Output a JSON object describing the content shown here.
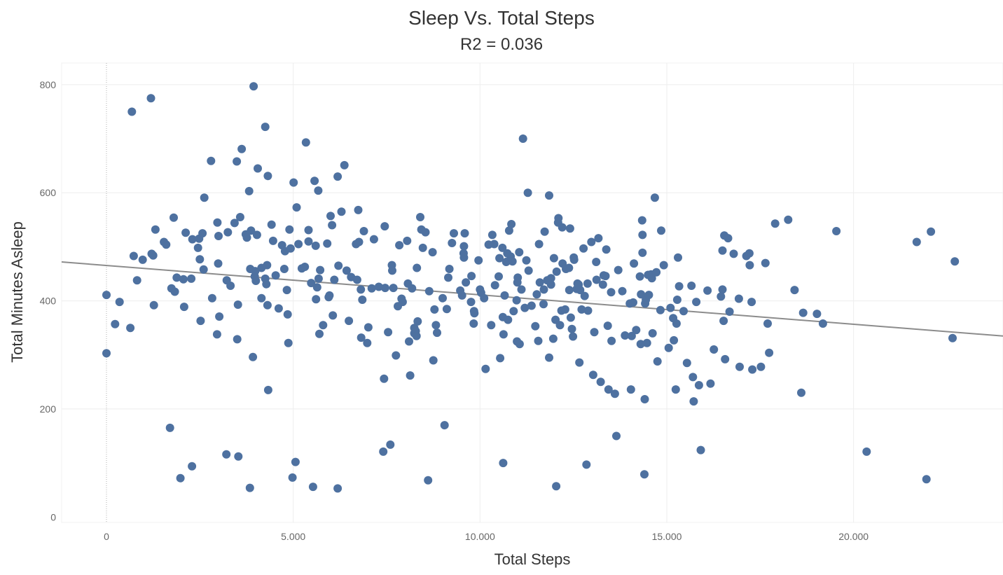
{
  "chart_data": {
    "type": "scatter",
    "title": "Sleep Vs. Total Steps",
    "subtitle": "R2 = 0.036",
    "xlabel": "Total Steps",
    "ylabel": "Total Minutes Asleep",
    "xlim": [
      -1200,
      24000
    ],
    "ylim": [
      -10,
      840
    ],
    "x_ticks": [
      0,
      5000,
      10000,
      15000,
      20000
    ],
    "x_tick_labels": [
      "0",
      "5.000",
      "10.000",
      "15.000",
      "20.000"
    ],
    "y_ticks": [
      0,
      200,
      400,
      600,
      800
    ],
    "y_tick_labels": [
      "0",
      "200",
      "400",
      "600",
      "800"
    ],
    "grid": true,
    "point_color": "#4e71a0",
    "trend_color": "#8c8c8c",
    "trend_line": {
      "x": [
        -1200,
        24000
      ],
      "y": [
        472,
        335
      ]
    },
    "points": [
      [
        0,
        303
      ],
      [
        0,
        411
      ],
      [
        230,
        357
      ],
      [
        350,
        398
      ],
      [
        640,
        350
      ],
      [
        680,
        750
      ],
      [
        730,
        483
      ],
      [
        820,
        438
      ],
      [
        970,
        476
      ],
      [
        1190,
        775
      ],
      [
        1210,
        487
      ],
      [
        1250,
        484
      ],
      [
        1270,
        392
      ],
      [
        1310,
        532
      ],
      [
        1540,
        509
      ],
      [
        1600,
        504
      ],
      [
        1700,
        165
      ],
      [
        1740,
        423
      ],
      [
        1800,
        554
      ],
      [
        1830,
        417
      ],
      [
        1880,
        443
      ],
      [
        1980,
        72
      ],
      [
        2060,
        440
      ],
      [
        2080,
        389
      ],
      [
        2120,
        526
      ],
      [
        2270,
        441
      ],
      [
        2290,
        94
      ],
      [
        2300,
        514
      ],
      [
        2450,
        498
      ],
      [
        2480,
        515
      ],
      [
        2500,
        477
      ],
      [
        2520,
        363
      ],
      [
        2570,
        525
      ],
      [
        2600,
        458
      ],
      [
        2620,
        591
      ],
      [
        2800,
        659
      ],
      [
        2830,
        405
      ],
      [
        2960,
        338
      ],
      [
        2970,
        545
      ],
      [
        2990,
        469
      ],
      [
        3000,
        520
      ],
      [
        3020,
        371
      ],
      [
        3210,
        116
      ],
      [
        3220,
        438
      ],
      [
        3250,
        527
      ],
      [
        3320,
        428
      ],
      [
        3430,
        544
      ],
      [
        3490,
        658
      ],
      [
        3500,
        329
      ],
      [
        3520,
        393
      ],
      [
        3530,
        112
      ],
      [
        3580,
        555
      ],
      [
        3620,
        681
      ],
      [
        3730,
        523
      ],
      [
        3760,
        517
      ],
      [
        3820,
        603
      ],
      [
        3840,
        54
      ],
      [
        3850,
        459
      ],
      [
        3870,
        530
      ],
      [
        3920,
        296
      ],
      [
        3940,
        797
      ],
      [
        3970,
        445
      ],
      [
        3980,
        455
      ],
      [
        4000,
        437
      ],
      [
        4030,
        522
      ],
      [
        4050,
        645
      ],
      [
        4150,
        405
      ],
      [
        4150,
        461
      ],
      [
        4250,
        722
      ],
      [
        4250,
        441
      ],
      [
        4280,
        431
      ],
      [
        4300,
        466
      ],
      [
        4310,
        392
      ],
      [
        4320,
        631
      ],
      [
        4330,
        235
      ],
      [
        4420,
        541
      ],
      [
        4460,
        511
      ],
      [
        4530,
        447
      ],
      [
        4610,
        386
      ],
      [
        4700,
        503
      ],
      [
        4760,
        459
      ],
      [
        4780,
        492
      ],
      [
        4830,
        420
      ],
      [
        4850,
        375
      ],
      [
        4870,
        322
      ],
      [
        4900,
        532
      ],
      [
        4930,
        497
      ],
      [
        4980,
        73
      ],
      [
        5010,
        619
      ],
      [
        5060,
        102
      ],
      [
        5090,
        573
      ],
      [
        5140,
        505
      ],
      [
        5230,
        460
      ],
      [
        5310,
        463
      ],
      [
        5340,
        693
      ],
      [
        5410,
        531
      ],
      [
        5410,
        510
      ],
      [
        5480,
        433
      ],
      [
        5530,
        56
      ],
      [
        5570,
        622
      ],
      [
        5600,
        502
      ],
      [
        5610,
        403
      ],
      [
        5640,
        425
      ],
      [
        5670,
        604
      ],
      [
        5680,
        441
      ],
      [
        5700,
        339
      ],
      [
        5720,
        457
      ],
      [
        5800,
        355
      ],
      [
        5910,
        506
      ],
      [
        5950,
        407
      ],
      [
        5970,
        410
      ],
      [
        6000,
        557
      ],
      [
        6040,
        540
      ],
      [
        6060,
        373
      ],
      [
        6100,
        439
      ],
      [
        6190,
        53
      ],
      [
        6190,
        630
      ],
      [
        6210,
        465
      ],
      [
        6290,
        565
      ],
      [
        6370,
        651
      ],
      [
        6430,
        456
      ],
      [
        6490,
        363
      ],
      [
        6550,
        444
      ],
      [
        6680,
        505
      ],
      [
        6710,
        439
      ],
      [
        6740,
        568
      ],
      [
        6760,
        509
      ],
      [
        6810,
        421
      ],
      [
        6820,
        332
      ],
      [
        6850,
        402
      ],
      [
        6890,
        529
      ],
      [
        6980,
        322
      ],
      [
        7010,
        351
      ],
      [
        7100,
        423
      ],
      [
        7160,
        514
      ],
      [
        7290,
        426
      ],
      [
        7410,
        121
      ],
      [
        7430,
        256
      ],
      [
        7450,
        538
      ],
      [
        7460,
        424
      ],
      [
        7540,
        342
      ],
      [
        7600,
        134
      ],
      [
        7640,
        466
      ],
      [
        7650,
        456
      ],
      [
        7680,
        424
      ],
      [
        7750,
        299
      ],
      [
        7800,
        390
      ],
      [
        7840,
        503
      ],
      [
        7900,
        404
      ],
      [
        7930,
        398
      ],
      [
        8050,
        511
      ],
      [
        8070,
        432
      ],
      [
        8100,
        325
      ],
      [
        8130,
        262
      ],
      [
        8180,
        423
      ],
      [
        8240,
        350
      ],
      [
        8240,
        340
      ],
      [
        8280,
        344
      ],
      [
        8300,
        335
      ],
      [
        8310,
        461
      ],
      [
        8330,
        362
      ],
      [
        8400,
        555
      ],
      [
        8430,
        532
      ],
      [
        8470,
        498
      ],
      [
        8540,
        527
      ],
      [
        8610,
        68
      ],
      [
        8640,
        418
      ],
      [
        8730,
        490
      ],
      [
        8750,
        290
      ],
      [
        8780,
        384
      ],
      [
        8820,
        355
      ],
      [
        8850,
        341
      ],
      [
        9000,
        405
      ],
      [
        9050,
        170
      ],
      [
        9110,
        385
      ],
      [
        9150,
        443
      ],
      [
        9180,
        459
      ],
      [
        9250,
        507
      ],
      [
        9300,
        525
      ],
      [
        9470,
        419
      ],
      [
        9520,
        410
      ],
      [
        9560,
        488
      ],
      [
        9570,
        480
      ],
      [
        9570,
        501
      ],
      [
        9590,
        525
      ],
      [
        9620,
        434
      ],
      [
        9770,
        446
      ],
      [
        9760,
        398
      ],
      [
        9830,
        358
      ],
      [
        9840,
        381
      ],
      [
        9850,
        377
      ],
      [
        9960,
        475
      ],
      [
        10000,
        421
      ],
      [
        10030,
        415
      ],
      [
        10110,
        405
      ],
      [
        10150,
        274
      ],
      [
        10230,
        504
      ],
      [
        10300,
        355
      ],
      [
        10330,
        522
      ],
      [
        10380,
        505
      ],
      [
        10400,
        429
      ],
      [
        10500,
        445
      ],
      [
        10520,
        479
      ],
      [
        10540,
        294
      ],
      [
        10600,
        498
      ],
      [
        10610,
        370
      ],
      [
        10620,
        100
      ],
      [
        10630,
        338
      ],
      [
        10660,
        410
      ],
      [
        10700,
        472
      ],
      [
        10730,
        488
      ],
      [
        10750,
        365
      ],
      [
        10780,
        530
      ],
      [
        10820,
        482
      ],
      [
        10840,
        542
      ],
      [
        10870,
        473
      ],
      [
        10900,
        381
      ],
      [
        10980,
        401
      ],
      [
        10990,
        325
      ],
      [
        11000,
        434
      ],
      [
        11010,
        443
      ],
      [
        11050,
        490
      ],
      [
        11060,
        320
      ],
      [
        11110,
        421
      ],
      [
        11150,
        700
      ],
      [
        11200,
        387
      ],
      [
        11240,
        475
      ],
      [
        11280,
        600
      ],
      [
        11300,
        456
      ],
      [
        11380,
        391
      ],
      [
        11480,
        353
      ],
      [
        11520,
        412
      ],
      [
        11560,
        326
      ],
      [
        11580,
        505
      ],
      [
        11600,
        434
      ],
      [
        11700,
        394
      ],
      [
        11710,
        421
      ],
      [
        11730,
        528
      ],
      [
        11800,
        438
      ],
      [
        11850,
        595
      ],
      [
        11850,
        295
      ],
      [
        11900,
        442
      ],
      [
        11900,
        430
      ],
      [
        11960,
        330
      ],
      [
        11980,
        479
      ],
      [
        12020,
        365
      ],
      [
        12040,
        57
      ],
      [
        12050,
        454
      ],
      [
        12090,
        545
      ],
      [
        12100,
        553
      ],
      [
        12140,
        355
      ],
      [
        12180,
        382
      ],
      [
        12200,
        536
      ],
      [
        12210,
        469
      ],
      [
        12280,
        384
      ],
      [
        12300,
        459
      ],
      [
        12380,
        461
      ],
      [
        12390,
        420
      ],
      [
        12410,
        534
      ],
      [
        12430,
        369
      ],
      [
        12460,
        348
      ],
      [
        12490,
        334
      ],
      [
        12510,
        480
      ],
      [
        12520,
        476
      ],
      [
        12590,
        422
      ],
      [
        12610,
        432
      ],
      [
        12640,
        430
      ],
      [
        12660,
        286
      ],
      [
        12680,
        420
      ],
      [
        12720,
        384
      ],
      [
        12770,
        497
      ],
      [
        12800,
        409
      ],
      [
        12850,
        97
      ],
      [
        12880,
        432
      ],
      [
        12890,
        382
      ],
      [
        12980,
        509
      ],
      [
        13030,
        263
      ],
      [
        13060,
        342
      ],
      [
        13110,
        472
      ],
      [
        13120,
        439
      ],
      [
        13170,
        516
      ],
      [
        13230,
        250
      ],
      [
        13290,
        430
      ],
      [
        13310,
        447
      ],
      [
        13360,
        446
      ],
      [
        13380,
        495
      ],
      [
        13420,
        354
      ],
      [
        13440,
        236
      ],
      [
        13510,
        416
      ],
      [
        13520,
        326
      ],
      [
        13610,
        228
      ],
      [
        13650,
        150
      ],
      [
        13700,
        457
      ],
      [
        13810,
        418
      ],
      [
        13880,
        336
      ],
      [
        14010,
        395
      ],
      [
        14040,
        236
      ],
      [
        14060,
        335
      ],
      [
        14100,
        397
      ],
      [
        14120,
        469
      ],
      [
        14180,
        346
      ],
      [
        14280,
        445
      ],
      [
        14300,
        320
      ],
      [
        14310,
        412
      ],
      [
        14340,
        549
      ],
      [
        14350,
        522
      ],
      [
        14350,
        489
      ],
      [
        14400,
        79
      ],
      [
        14410,
        218
      ],
      [
        14420,
        395
      ],
      [
        14440,
        402
      ],
      [
        14470,
        322
      ],
      [
        14500,
        448
      ],
      [
        14520,
        411
      ],
      [
        14580,
        449
      ],
      [
        14600,
        442
      ],
      [
        14620,
        340
      ],
      [
        14680,
        591
      ],
      [
        14720,
        453
      ],
      [
        14750,
        288
      ],
      [
        14830,
        383
      ],
      [
        14850,
        530
      ],
      [
        14920,
        466
      ],
      [
        15050,
        313
      ],
      [
        15100,
        387
      ],
      [
        15170,
        368
      ],
      [
        15190,
        327
      ],
      [
        15240,
        236
      ],
      [
        15260,
        358
      ],
      [
        15280,
        402
      ],
      [
        15300,
        480
      ],
      [
        15330,
        427
      ],
      [
        15450,
        381
      ],
      [
        15540,
        285
      ],
      [
        15660,
        428
      ],
      [
        15700,
        259
      ],
      [
        15720,
        214
      ],
      [
        15790,
        398
      ],
      [
        15860,
        244
      ],
      [
        15910,
        124
      ],
      [
        16090,
        419
      ],
      [
        16170,
        247
      ],
      [
        16260,
        310
      ],
      [
        16450,
        408
      ],
      [
        16490,
        421
      ],
      [
        16490,
        493
      ],
      [
        16520,
        363
      ],
      [
        16540,
        521
      ],
      [
        16560,
        292
      ],
      [
        16640,
        516
      ],
      [
        16680,
        380
      ],
      [
        16790,
        487
      ],
      [
        16930,
        404
      ],
      [
        16950,
        278
      ],
      [
        17130,
        483
      ],
      [
        17210,
        488
      ],
      [
        17220,
        466
      ],
      [
        17270,
        398
      ],
      [
        17290,
        273
      ],
      [
        17520,
        278
      ],
      [
        17640,
        470
      ],
      [
        17700,
        358
      ],
      [
        17740,
        304
      ],
      [
        17900,
        543
      ],
      [
        18250,
        550
      ],
      [
        18420,
        420
      ],
      [
        18600,
        230
      ],
      [
        18650,
        378
      ],
      [
        19020,
        376
      ],
      [
        19180,
        358
      ],
      [
        19540,
        529
      ],
      [
        20350,
        121
      ],
      [
        21690,
        509
      ],
      [
        21950,
        70
      ],
      [
        22070,
        528
      ],
      [
        22650,
        331
      ],
      [
        22710,
        473
      ]
    ]
  }
}
